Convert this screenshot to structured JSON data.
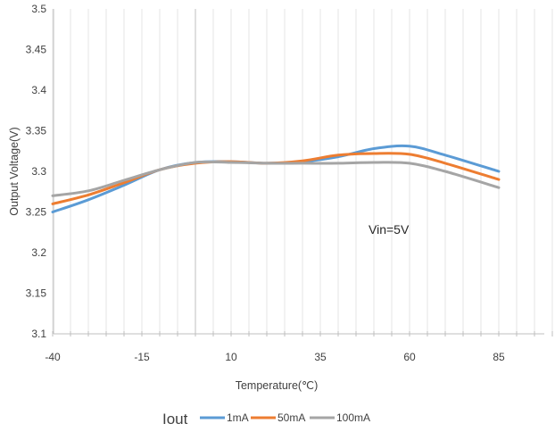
{
  "chart_data": {
    "type": "line",
    "title": "",
    "xlabel": "Temperature(℃)",
    "ylabel": "Output Voltage(V)",
    "xlim": [
      -40,
      100
    ],
    "ylim": [
      3.1,
      3.5
    ],
    "x_ticks": [
      "-40",
      "-15",
      "10",
      "35",
      "60",
      "85"
    ],
    "y_ticks": [
      "3.1",
      "3.15",
      "3.2",
      "3.25",
      "3.3",
      "3.35",
      "3.4",
      "3.45",
      "3.5"
    ],
    "grid": "vertical",
    "annotation": "Vin=5V",
    "legend": {
      "title": "Iout",
      "placement": "bottom"
    },
    "series": [
      {
        "name": "1mA",
        "color": "#5B9BD5",
        "x": [
          -40,
          -30,
          -20,
          -10,
          0,
          10,
          20,
          30,
          40,
          50,
          60,
          70,
          85
        ],
        "y": [
          3.25,
          3.265,
          3.283,
          3.302,
          3.311,
          3.312,
          3.31,
          3.312,
          3.318,
          3.328,
          3.331,
          3.32,
          3.3
        ]
      },
      {
        "name": "50mA",
        "color": "#ED7D31",
        "x": [
          -40,
          -30,
          -20,
          -10,
          0,
          10,
          20,
          30,
          40,
          50,
          60,
          70,
          85
        ],
        "y": [
          3.26,
          3.271,
          3.286,
          3.302,
          3.31,
          3.312,
          3.31,
          3.313,
          3.32,
          3.322,
          3.321,
          3.31,
          3.29
        ]
      },
      {
        "name": "100mA",
        "color": "#A5A5A5",
        "x": [
          -40,
          -30,
          -20,
          -10,
          0,
          10,
          20,
          30,
          40,
          50,
          60,
          70,
          85
        ],
        "y": [
          3.27,
          3.276,
          3.289,
          3.302,
          3.311,
          3.311,
          3.31,
          3.31,
          3.31,
          3.311,
          3.31,
          3.3,
          3.28
        ]
      }
    ]
  }
}
